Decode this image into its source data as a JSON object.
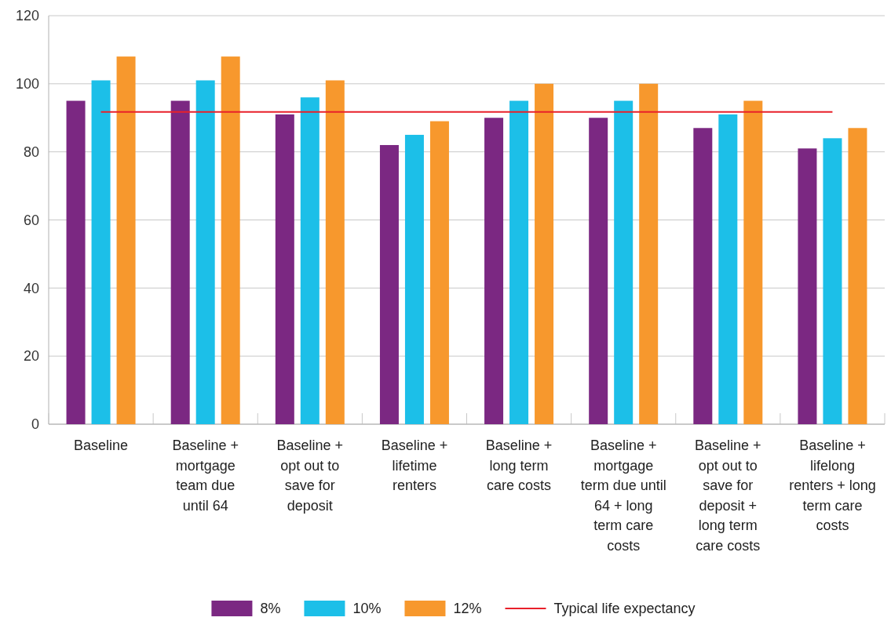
{
  "chart_data": {
    "type": "bar",
    "categories": [
      "Baseline",
      "Baseline + mortgage team due until 64",
      "Baseline + opt out to save for deposit",
      "Baseline + lifetime renters",
      "Baseline + long term care costs",
      "Baseline + mortgage term due until 64 + long term care costs",
      "Baseline + opt out to save for deposit + long term care costs",
      "Baseline + lifelong renters + long term care costs"
    ],
    "series": [
      {
        "name": "8%",
        "color": "#7b2882",
        "values": [
          95,
          95,
          91,
          82,
          90,
          90,
          87,
          81
        ]
      },
      {
        "name": "10%",
        "color": "#1cbfe8",
        "values": [
          101,
          101,
          96,
          85,
          95,
          95,
          91,
          84
        ]
      },
      {
        "name": "12%",
        "color": "#f7982d",
        "values": [
          108,
          108,
          101,
          89,
          100,
          100,
          95,
          87
        ]
      },
      {
        "name": "Typical life expectancy",
        "type": "line",
        "color": "#e8202a",
        "values": [
          91.7,
          91.7,
          91.7,
          91.7,
          91.7,
          91.7,
          91.7,
          91.7
        ]
      }
    ],
    "ylim": [
      0,
      120
    ],
    "yticks": [
      0,
      20,
      40,
      60,
      80,
      100,
      120
    ],
    "grid": "y",
    "legend": "bottom",
    "marker": "none",
    "line_style": "solid"
  }
}
